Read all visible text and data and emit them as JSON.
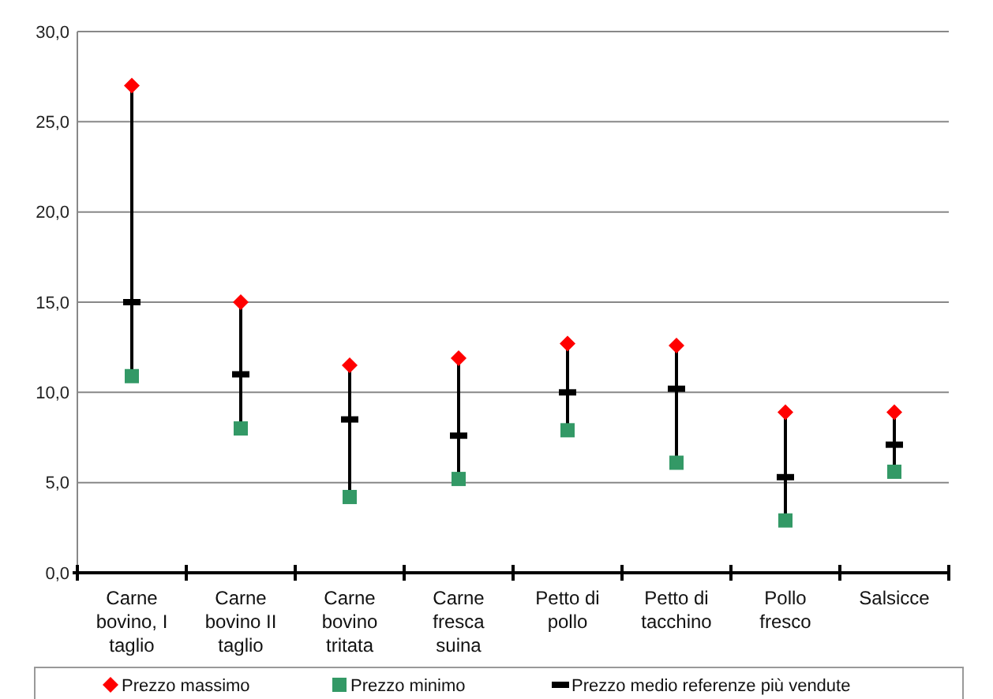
{
  "chart_data": {
    "type": "scatter",
    "categories": [
      "Carne bovino, I taglio",
      "Carne bovino II taglio",
      "Carne bovino tritata",
      "Carne fresca suina",
      "Petto di pollo",
      "Petto di tacchino",
      "Pollo fresco",
      "Salsicce"
    ],
    "series": [
      {
        "name": "Prezzo massimo",
        "color": "#ff0000",
        "marker": "diamond",
        "values": [
          27.0,
          15.0,
          11.5,
          11.9,
          12.7,
          12.6,
          8.9,
          8.9
        ]
      },
      {
        "name": "Prezzo minimo",
        "color": "#339966",
        "marker": "square",
        "values": [
          10.9,
          8.0,
          4.2,
          5.2,
          7.9,
          6.1,
          2.9,
          5.6
        ]
      },
      {
        "name": "Prezzo medio referenze più vendute",
        "type": "scatter",
        "color": "#000000",
        "values": [
          15.0,
          11.0,
          8.5,
          7.6,
          10.0,
          10.2,
          5.3,
          7.1
        ]
      }
    ],
    "ylim": [
      0,
      30
    ],
    "yticks": [
      {
        "value": 0,
        "label": "0,0"
      },
      {
        "value": 5,
        "label": "5,0"
      },
      {
        "value": 10,
        "label": "10,0"
      },
      {
        "value": 15,
        "label": "15,0"
      },
      {
        "value": 20,
        "label": "20,0"
      },
      {
        "value": 25,
        "label": "25,0"
      },
      {
        "value": 30,
        "label": "30,0"
      }
    ],
    "grid": "y",
    "legend": "bottom"
  }
}
